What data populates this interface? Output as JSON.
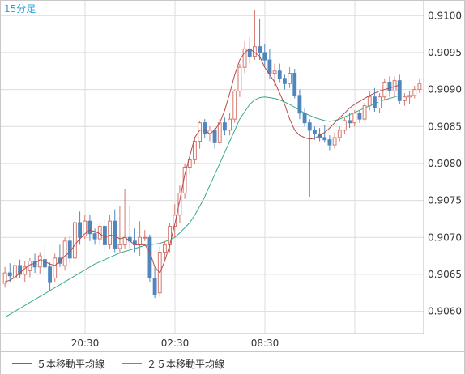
{
  "chart_data": {
    "type": "candlestick",
    "timeframe_label": "15分足",
    "ylim": [
      0.9057,
      0.9102
    ],
    "y_ticks": [
      "0.9060",
      "0.9065",
      "0.9070",
      "0.9075",
      "0.9080",
      "0.9085",
      "0.9090",
      "0.9095",
      "0.9100"
    ],
    "x_ticks": [
      "20:30",
      "02:30",
      "08:30"
    ],
    "grid": true,
    "colors": {
      "up": "#d2776d",
      "down": "#4f86be",
      "ma5": "#b84a4a",
      "ma25": "#3aa888",
      "grid": "#dcdcdc",
      "label_color": "#2aa0d8"
    },
    "series": [
      {
        "name": "５本移動平均線",
        "color": "#b84a4a"
      },
      {
        "name": "２５本移動平均線",
        "color": "#3aa888"
      }
    ],
    "ohlc": [
      [
        0.90638,
        0.9066,
        0.90632,
        0.90652
      ],
      [
        0.90652,
        0.90665,
        0.9064,
        0.90648
      ],
      [
        0.90645,
        0.90668,
        0.9064,
        0.90662
      ],
      [
        0.90662,
        0.9067,
        0.90645,
        0.9065
      ],
      [
        0.9065,
        0.90668,
        0.9064,
        0.9066
      ],
      [
        0.90655,
        0.90672,
        0.90646,
        0.90668
      ],
      [
        0.90668,
        0.90678,
        0.90652,
        0.9066
      ],
      [
        0.9066,
        0.9068,
        0.9065,
        0.90675
      ],
      [
        0.9067,
        0.9069,
        0.90658,
        0.9066
      ],
      [
        0.9066,
        0.90666,
        0.90628,
        0.9064
      ],
      [
        0.90645,
        0.90678,
        0.9064,
        0.90672
      ],
      [
        0.90672,
        0.9069,
        0.9066,
        0.90665
      ],
      [
        0.90662,
        0.907,
        0.90655,
        0.90695
      ],
      [
        0.90695,
        0.90702,
        0.90665,
        0.90672
      ],
      [
        0.90672,
        0.90725,
        0.90665,
        0.9072
      ],
      [
        0.9072,
        0.90735,
        0.9069,
        0.907
      ],
      [
        0.90702,
        0.9073,
        0.90698,
        0.90722
      ],
      [
        0.90722,
        0.9073,
        0.90695,
        0.90705
      ],
      [
        0.90705,
        0.90712,
        0.9069,
        0.90698
      ],
      [
        0.90698,
        0.9072,
        0.9069,
        0.90715
      ],
      [
        0.90715,
        0.90725,
        0.9068,
        0.9069
      ],
      [
        0.9069,
        0.9073,
        0.90685,
        0.90722
      ],
      [
        0.90722,
        0.90738,
        0.9068,
        0.90685
      ],
      [
        0.90685,
        0.90742,
        0.90678,
        0.9069
      ],
      [
        0.9069,
        0.90765,
        0.90685,
        0.907
      ],
      [
        0.907,
        0.90742,
        0.90685,
        0.90695
      ],
      [
        0.90695,
        0.90712,
        0.9068,
        0.9069
      ],
      [
        0.9069,
        0.90722,
        0.90675,
        0.907
      ],
      [
        0.907,
        0.9071,
        0.90695,
        0.907
      ],
      [
        0.907,
        0.90704,
        0.9064,
        0.90645
      ],
      [
        0.90645,
        0.9066,
        0.90618,
        0.90622
      ],
      [
        0.90625,
        0.90688,
        0.9062,
        0.9068
      ],
      [
        0.9068,
        0.90695,
        0.9067,
        0.9069
      ],
      [
        0.9069,
        0.9072,
        0.9068,
        0.90715
      ],
      [
        0.90715,
        0.90745,
        0.907,
        0.9073
      ],
      [
        0.9073,
        0.9077,
        0.9072,
        0.9076
      ],
      [
        0.9076,
        0.908,
        0.90752,
        0.90795
      ],
      [
        0.90795,
        0.90812,
        0.90785,
        0.90805
      ],
      [
        0.90805,
        0.90835,
        0.908,
        0.9083
      ],
      [
        0.9083,
        0.90858,
        0.9082,
        0.90855
      ],
      [
        0.90855,
        0.9086,
        0.90835,
        0.9084
      ],
      [
        0.9084,
        0.9085,
        0.9083,
        0.90845
      ],
      [
        0.90845,
        0.90848,
        0.9082,
        0.90828
      ],
      [
        0.90828,
        0.9086,
        0.90825,
        0.90855
      ],
      [
        0.90855,
        0.90862,
        0.90838,
        0.90845
      ],
      [
        0.90845,
        0.90868,
        0.90838,
        0.9086
      ],
      [
        0.9086,
        0.909,
        0.90855,
        0.90898
      ],
      [
        0.90898,
        0.90935,
        0.9089,
        0.9093
      ],
      [
        0.9093,
        0.90965,
        0.90922,
        0.90955
      ],
      [
        0.90955,
        0.9097,
        0.90935,
        0.90945
      ],
      [
        0.90945,
        0.91008,
        0.9094,
        0.90958
      ],
      [
        0.90958,
        0.90995,
        0.9094,
        0.9095
      ],
      [
        0.9095,
        0.90962,
        0.9093,
        0.9094
      ],
      [
        0.9094,
        0.90955,
        0.90915,
        0.90922
      ],
      [
        0.90922,
        0.90935,
        0.90905,
        0.90925
      ],
      [
        0.90925,
        0.90935,
        0.9091,
        0.90915
      ],
      [
        0.90915,
        0.9092,
        0.909,
        0.90908
      ],
      [
        0.90908,
        0.9093,
        0.90902,
        0.90922
      ],
      [
        0.90922,
        0.90928,
        0.90888,
        0.90892
      ],
      [
        0.90892,
        0.909,
        0.9086,
        0.90868
      ],
      [
        0.90868,
        0.90875,
        0.9085,
        0.90855
      ],
      [
        0.90855,
        0.9086,
        0.90755,
        0.90845
      ],
      [
        0.90845,
        0.9085,
        0.90832,
        0.9084
      ],
      [
        0.9084,
        0.90848,
        0.9083,
        0.90835
      ],
      [
        0.90835,
        0.90852,
        0.90828,
        0.90832
      ],
      [
        0.90832,
        0.90838,
        0.90818,
        0.90825
      ],
      [
        0.90825,
        0.90842,
        0.9082,
        0.90835
      ],
      [
        0.90835,
        0.9085,
        0.9083,
        0.90845
      ],
      [
        0.90845,
        0.90862,
        0.9084,
        0.90858
      ],
      [
        0.90858,
        0.90868,
        0.90848,
        0.90855
      ],
      [
        0.90855,
        0.90872,
        0.9085,
        0.90868
      ],
      [
        0.90868,
        0.90872,
        0.90855,
        0.9086
      ],
      [
        0.9086,
        0.90882,
        0.90858,
        0.90878
      ],
      [
        0.90878,
        0.90898,
        0.90872,
        0.9089
      ],
      [
        0.9089,
        0.90902,
        0.9087,
        0.90875
      ],
      [
        0.90875,
        0.90895,
        0.90868,
        0.9089
      ],
      [
        0.9089,
        0.90915,
        0.90885,
        0.9091
      ],
      [
        0.9091,
        0.90918,
        0.9089,
        0.90898
      ],
      [
        0.90898,
        0.90918,
        0.9089,
        0.90912
      ],
      [
        0.90912,
        0.9092,
        0.9088,
        0.90885
      ],
      [
        0.90885,
        0.90895,
        0.90878,
        0.9089
      ],
      [
        0.9089,
        0.90898,
        0.9088,
        0.90892
      ],
      [
        0.90892,
        0.90905,
        0.90888,
        0.909
      ],
      [
        0.909,
        0.90915,
        0.90895,
        0.90908
      ]
    ],
    "ma5": [
      0.9064,
      0.90642,
      0.90646,
      0.90652,
      0.90658,
      0.90663,
      0.90665,
      0.9067,
      0.90667,
      0.90664,
      0.90662,
      0.90668,
      0.90675,
      0.9068,
      0.9069,
      0.90698,
      0.90705,
      0.9071,
      0.90708,
      0.90705,
      0.907,
      0.90703,
      0.90702,
      0.90698,
      0.907,
      0.90695,
      0.9069,
      0.9069,
      0.9069,
      0.9068,
      0.9066,
      0.90652,
      0.90668,
      0.9069,
      0.90718,
      0.9075,
      0.90785,
      0.9081,
      0.90835,
      0.90845,
      0.90845,
      0.9084,
      0.90845,
      0.90855,
      0.90872,
      0.90895,
      0.9092,
      0.9094,
      0.9095,
      0.90955,
      0.9095,
      0.90945,
      0.9093,
      0.9092,
      0.9091,
      0.90895,
      0.9088,
      0.9086,
      0.90845,
      0.90838,
      0.90835,
      0.90833,
      0.90834,
      0.90838,
      0.90842,
      0.90848,
      0.90855,
      0.90862,
      0.90868,
      0.90875,
      0.9088,
      0.90884,
      0.90888,
      0.90892,
      0.90895,
      0.90898,
      0.909,
      0.90902,
      0.90904,
      0.90906
    ],
    "ma25": [
      0.90592,
      0.90596,
      0.906,
      0.90604,
      0.90608,
      0.90612,
      0.90616,
      0.9062,
      0.90624,
      0.90628,
      0.90632,
      0.90636,
      0.9064,
      0.90644,
      0.90648,
      0.90652,
      0.90656,
      0.9066,
      0.90664,
      0.90667,
      0.9067,
      0.90673,
      0.90676,
      0.90679,
      0.90681,
      0.90683,
      0.90685,
      0.90687,
      0.90689,
      0.9069,
      0.90691,
      0.90692,
      0.90694,
      0.90697,
      0.907,
      0.90706,
      0.90713,
      0.9072,
      0.9073,
      0.90742,
      0.90755,
      0.9077,
      0.90785,
      0.908,
      0.90815,
      0.9083,
      0.90845,
      0.9086,
      0.9087,
      0.9088,
      0.90886,
      0.90889,
      0.9089,
      0.90889,
      0.90888,
      0.90886,
      0.90883,
      0.9088,
      0.90876,
      0.90872,
      0.90868,
      0.90865,
      0.90862,
      0.9086,
      0.90858,
      0.90857,
      0.90858,
      0.9086,
      0.90863,
      0.90866,
      0.90869,
      0.90872,
      0.90875,
      0.90878,
      0.90881,
      0.90884,
      0.90886,
      0.90888,
      0.9089,
      0.90892
    ]
  }
}
